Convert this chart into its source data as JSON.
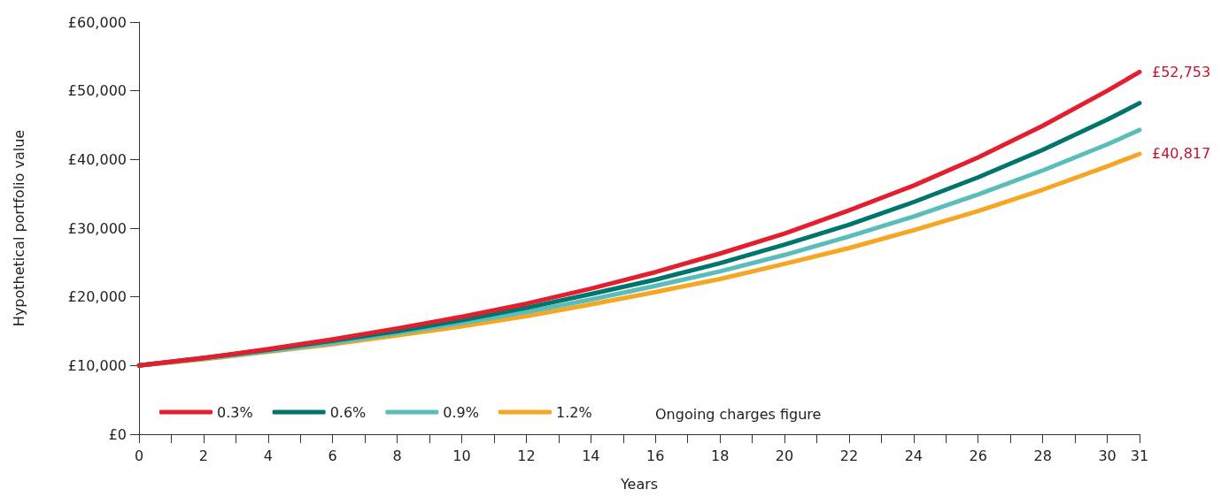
{
  "chart_data": {
    "type": "line",
    "xlabel": "Years",
    "ylabel": "Hypothetical portfolio value",
    "legend_title": "Ongoing charges figure",
    "legend": "bottom left",
    "grid": false,
    "marker": "none",
    "line_style": "solid",
    "x": [
      0,
      2,
      4,
      6,
      8,
      10,
      12,
      14,
      16,
      18,
      20,
      22,
      24,
      26,
      28,
      30,
      31
    ],
    "xlim": [
      0,
      31
    ],
    "xticks": [
      0,
      {
        "value": 1,
        "label": null
      },
      2,
      {
        "value": 3,
        "label": null
      },
      4,
      {
        "value": 5,
        "label": null
      },
      6,
      {
        "value": 7,
        "label": null
      },
      8,
      {
        "value": 9,
        "label": null
      },
      10,
      {
        "value": 11,
        "label": null
      },
      12,
      {
        "value": 13,
        "label": null
      },
      14,
      {
        "value": 15,
        "label": null
      },
      16,
      {
        "value": 17,
        "label": null
      },
      18,
      {
        "value": 19,
        "label": null
      },
      20,
      {
        "value": 21,
        "label": null
      },
      22,
      {
        "value": 23,
        "label": null
      },
      24,
      {
        "value": 25,
        "label": null
      },
      26,
      {
        "value": 27,
        "label": null
      },
      28,
      {
        "value": 29,
        "label": null
      },
      30,
      31
    ],
    "ylim": [
      0,
      60000
    ],
    "yticks": [
      {
        "value": 0,
        "label": "£0"
      },
      {
        "value": 10000,
        "label": "£10,000"
      },
      {
        "value": 20000,
        "label": "£20,000"
      },
      {
        "value": 30000,
        "label": "£30,000"
      },
      {
        "value": 40000,
        "label": "£40,000"
      },
      {
        "value": 50000,
        "label": "£50,000"
      },
      {
        "value": 60000,
        "label": "£60,000"
      }
    ],
    "series": [
      {
        "name": "0.3%",
        "color": "#e31e2f",
        "values": [
          10000,
          11100,
          12400,
          13800,
          15400,
          17100,
          19000,
          21200,
          23600,
          26300,
          29200,
          32600,
          36200,
          40300,
          44900,
          50000,
          52753
        ]
      },
      {
        "name": "0.6%",
        "color": "#00756c",
        "values": [
          10000,
          11100,
          12300,
          13600,
          15000,
          16600,
          18400,
          20400,
          22500,
          24900,
          27600,
          30500,
          33800,
          37400,
          41400,
          45800,
          48200
        ]
      },
      {
        "name": "0.9%",
        "color": "#5bbdb9",
        "values": [
          10000,
          11000,
          12100,
          13300,
          14700,
          16200,
          17800,
          19600,
          21600,
          23700,
          26100,
          28800,
          31700,
          34900,
          38400,
          42200,
          44300
        ]
      },
      {
        "name": "1.2%",
        "color": "#f5a623",
        "values": [
          10000,
          10900,
          12000,
          13100,
          14400,
          15700,
          17200,
          18900,
          20700,
          22600,
          24800,
          27100,
          29700,
          32500,
          35600,
          39000,
          40817
        ]
      }
    ],
    "annotations": [
      {
        "text": "£52,753",
        "x": 31,
        "y": 52753
      },
      {
        "text": "£40,817",
        "x": 31,
        "y": 40817
      }
    ]
  }
}
